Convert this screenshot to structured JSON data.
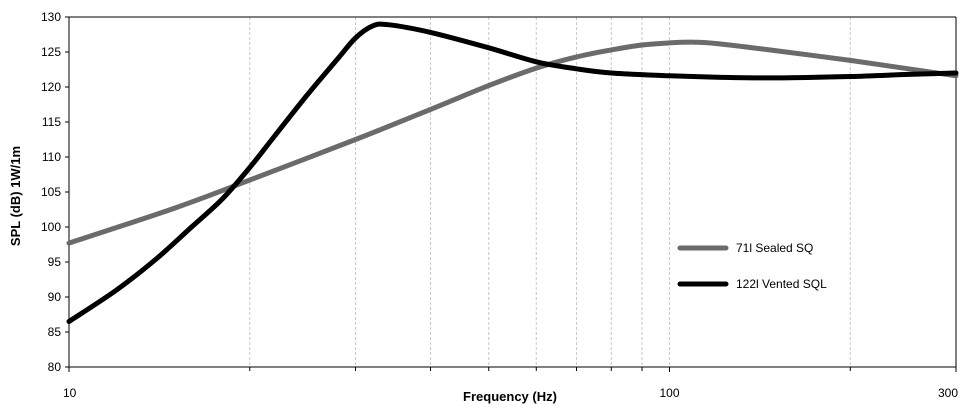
{
  "chart_data": {
    "type": "line",
    "xlabel": "Frequency (Hz)",
    "ylabel": "SPL (dB) 1W/1m",
    "xscale": "log",
    "xlim": [
      10,
      300
    ],
    "ylim": [
      80,
      130
    ],
    "x_tick_labels": [
      {
        "value": 10,
        "label": "10"
      },
      {
        "value": 100,
        "label": "100"
      },
      {
        "value": 300,
        "label": "300"
      }
    ],
    "x_minor_ticks": [
      20,
      30,
      40,
      50,
      60,
      70,
      80,
      90,
      200
    ],
    "y_ticks": [
      80,
      85,
      90,
      95,
      100,
      105,
      110,
      115,
      120,
      125,
      130
    ],
    "grid": "vertical",
    "legend_position": "right-middle",
    "series": [
      {
        "name": "71l Sealed SQ",
        "color": "#6b6b6b",
        "points": [
          [
            10,
            97.7
          ],
          [
            15,
            102.7
          ],
          [
            20,
            106.7
          ],
          [
            30,
            112.5
          ],
          [
            40,
            116.8
          ],
          [
            50,
            120.2
          ],
          [
            60,
            122.7
          ],
          [
            70,
            124.3
          ],
          [
            80,
            125.3
          ],
          [
            90,
            126.0
          ],
          [
            100,
            126.3
          ],
          [
            110,
            126.4
          ],
          [
            120,
            126.2
          ],
          [
            150,
            125.2
          ],
          [
            200,
            123.8
          ],
          [
            250,
            122.6
          ],
          [
            300,
            121.6
          ]
        ]
      },
      {
        "name": "122l Vented SQL",
        "color": "#000000",
        "points": [
          [
            10,
            86.5
          ],
          [
            12,
            91.0
          ],
          [
            14,
            95.5
          ],
          [
            16,
            100.0
          ],
          [
            18,
            104.0
          ],
          [
            20,
            108.5
          ],
          [
            22,
            113.0
          ],
          [
            25,
            119.0
          ],
          [
            28,
            124.0
          ],
          [
            30,
            127.0
          ],
          [
            32,
            128.7
          ],
          [
            34,
            128.9
          ],
          [
            40,
            127.8
          ],
          [
            50,
            125.6
          ],
          [
            60,
            123.6
          ],
          [
            70,
            122.6
          ],
          [
            80,
            122.0
          ],
          [
            100,
            121.6
          ],
          [
            120,
            121.4
          ],
          [
            150,
            121.3
          ],
          [
            200,
            121.5
          ],
          [
            250,
            121.8
          ],
          [
            300,
            122.0
          ]
        ]
      }
    ]
  }
}
